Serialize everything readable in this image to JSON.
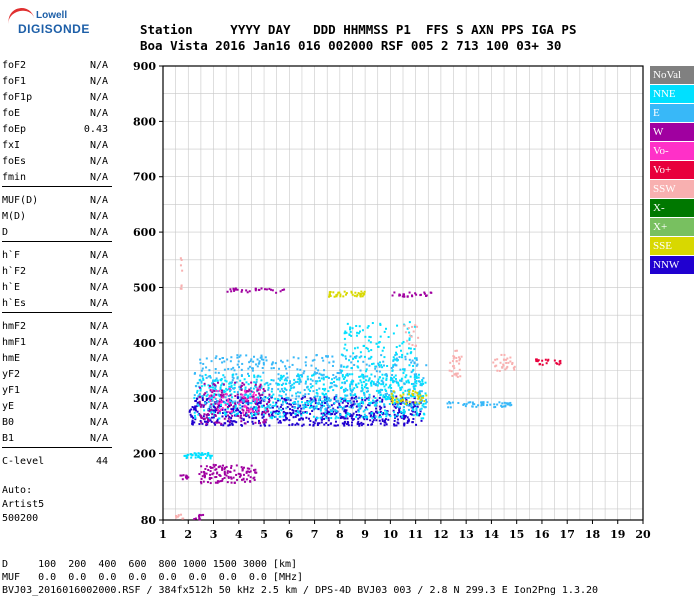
{
  "logo": {
    "brand_top": "Lowell",
    "brand_main": "DIGISONDE"
  },
  "header": {
    "line1": "Station     YYYY DAY   DDD HHMMSS P1  FFS S AXN PPS IGA PS",
    "line2": "Boa Vista 2016 Jan16 016 002000 RSF 005 2 713 100 03+ 30"
  },
  "params_groups": [
    [
      {
        "name": "foF2",
        "value": "N/A"
      },
      {
        "name": "foF1",
        "value": "N/A"
      },
      {
        "name": "foF1p",
        "value": "N/A"
      },
      {
        "name": "foE",
        "value": "N/A"
      },
      {
        "name": "foEp",
        "value": "0.43"
      },
      {
        "name": "fxI",
        "value": "N/A"
      },
      {
        "name": "foEs",
        "value": "N/A"
      },
      {
        "name": "fmin",
        "value": "N/A"
      }
    ],
    [
      {
        "name": "MUF(D)",
        "value": "N/A"
      },
      {
        "name": "M(D)",
        "value": "N/A"
      },
      {
        "name": "D",
        "value": "N/A"
      }
    ],
    [
      {
        "name": "h`F",
        "value": "N/A"
      },
      {
        "name": "h`F2",
        "value": "N/A"
      },
      {
        "name": "h`E",
        "value": "N/A"
      },
      {
        "name": "h`Es",
        "value": "N/A"
      }
    ],
    [
      {
        "name": "hmF2",
        "value": "N/A"
      },
      {
        "name": "hmF1",
        "value": "N/A"
      },
      {
        "name": "hmE",
        "value": "N/A"
      },
      {
        "name": "yF2",
        "value": "N/A"
      },
      {
        "name": "yF1",
        "value": "N/A"
      },
      {
        "name": "yE",
        "value": "N/A"
      },
      {
        "name": "B0",
        "value": "N/A"
      },
      {
        "name": "B1",
        "value": "N/A"
      }
    ],
    [
      {
        "name": "C-level",
        "value": "44"
      }
    ]
  ],
  "auto": {
    "line1": "Auto:",
    "line2": "Artist5",
    "line3": "500200"
  },
  "legend": [
    {
      "label": "NoVal",
      "color": "#808080"
    },
    {
      "label": "NNE",
      "color": "#00e0ff"
    },
    {
      "label": "E",
      "color": "#38b8f8"
    },
    {
      "label": "W",
      "color": "#a000a0"
    },
    {
      "label": "Vo-",
      "color": "#ff30c8"
    },
    {
      "label": "Vo+",
      "color": "#e8003c"
    },
    {
      "label": "SSW",
      "color": "#f8b0b0"
    },
    {
      "label": "X-",
      "color": "#007800"
    },
    {
      "label": "X+",
      "color": "#78c060"
    },
    {
      "label": "SSE",
      "color": "#d8d800"
    },
    {
      "label": "NNW",
      "color": "#2000d0"
    }
  ],
  "bottom": {
    "line1": "D     100  200  400  600  800 1000 1500 3000 [km]",
    "line2": "MUF   0.0  0.0  0.0  0.0  0.0  0.0  0.0  0.0 [MHz]",
    "line3": "BVJ03_2016016002000.RSF / 384fx512h 50 kHz 2.5 km / DPS-4D BVJ03 003 / 2.8 N 299.3 E Ion2Png 1.3.20"
  },
  "chart_data": {
    "type": "scatter",
    "xlim": [
      1,
      20
    ],
    "ylim": [
      80,
      900
    ],
    "x_ticks": [
      1,
      2,
      3,
      4,
      5,
      6,
      7,
      8,
      9,
      10,
      11,
      12,
      13,
      14,
      15,
      16,
      17,
      18,
      19,
      20
    ],
    "y_ticks": [
      80,
      200,
      300,
      400,
      500,
      600,
      700,
      800,
      900
    ],
    "grid": true,
    "legend_placement": "right",
    "clusters": [
      {
        "series": "NNW",
        "x": [
          2.0,
          11.2
        ],
        "y": [
          252,
          305
        ],
        "n": 700
      },
      {
        "series": "NNE",
        "x": [
          2.2,
          11.4
        ],
        "y": [
          265,
          345
        ],
        "n": 600
      },
      {
        "series": "E",
        "x": [
          2.2,
          11.4
        ],
        "y": [
          280,
          380
        ],
        "n": 450
      },
      {
        "series": "NNE",
        "x": [
          8.0,
          11.0
        ],
        "y": [
          300,
          440
        ],
        "n": 180
      },
      {
        "series": "W",
        "x": [
          2.4,
          5.2
        ],
        "y": [
          255,
          330
        ],
        "n": 150
      },
      {
        "series": "Vo-",
        "x": [
          2.8,
          4.8
        ],
        "y": [
          275,
          320
        ],
        "n": 60
      },
      {
        "series": "W",
        "x": [
          2.4,
          4.7
        ],
        "y": [
          148,
          182
        ],
        "n": 120
      },
      {
        "series": "NNE",
        "x": [
          1.8,
          2.9
        ],
        "y": [
          193,
          203
        ],
        "n": 40
      },
      {
        "series": "W",
        "x": [
          1.6,
          2.0
        ],
        "y": [
          155,
          165
        ],
        "n": 10
      },
      {
        "series": "SSE",
        "x": [
          7.5,
          9.0
        ],
        "y": [
          485,
          495
        ],
        "n": 40
      },
      {
        "series": "W",
        "x": [
          3.5,
          6.0
        ],
        "y": [
          492,
          500
        ],
        "n": 30
      },
      {
        "series": "W",
        "x": [
          10.0,
          11.6
        ],
        "y": [
          485,
          493
        ],
        "n": 25
      },
      {
        "series": "E",
        "x": [
          12.2,
          14.8
        ],
        "y": [
          285,
          295
        ],
        "n": 50
      },
      {
        "series": "SSW",
        "x": [
          12.3,
          12.8
        ],
        "y": [
          340,
          390
        ],
        "n": 30
      },
      {
        "series": "SSW",
        "x": [
          14.0,
          14.9
        ],
        "y": [
          350,
          380
        ],
        "n": 30
      },
      {
        "series": "Vo+",
        "x": [
          15.7,
          16.8
        ],
        "y": [
          362,
          372
        ],
        "n": 20
      },
      {
        "series": "SSE",
        "x": [
          10.0,
          11.4
        ],
        "y": [
          290,
          315
        ],
        "n": 40
      },
      {
        "series": "SSW",
        "x": [
          10.5,
          11.1
        ],
        "y": [
          395,
          435
        ],
        "n": 15
      },
      {
        "series": "SSW",
        "x": [
          1.4,
          1.8
        ],
        "y": [
          84,
          92
        ],
        "n": 8
      },
      {
        "series": "W",
        "x": [
          2.1,
          2.6
        ],
        "y": [
          82,
          92
        ],
        "n": 10
      },
      {
        "series": "SSW",
        "x": [
          1.66,
          1.72
        ],
        "y": [
          490,
          560
        ],
        "n": 8
      }
    ]
  }
}
